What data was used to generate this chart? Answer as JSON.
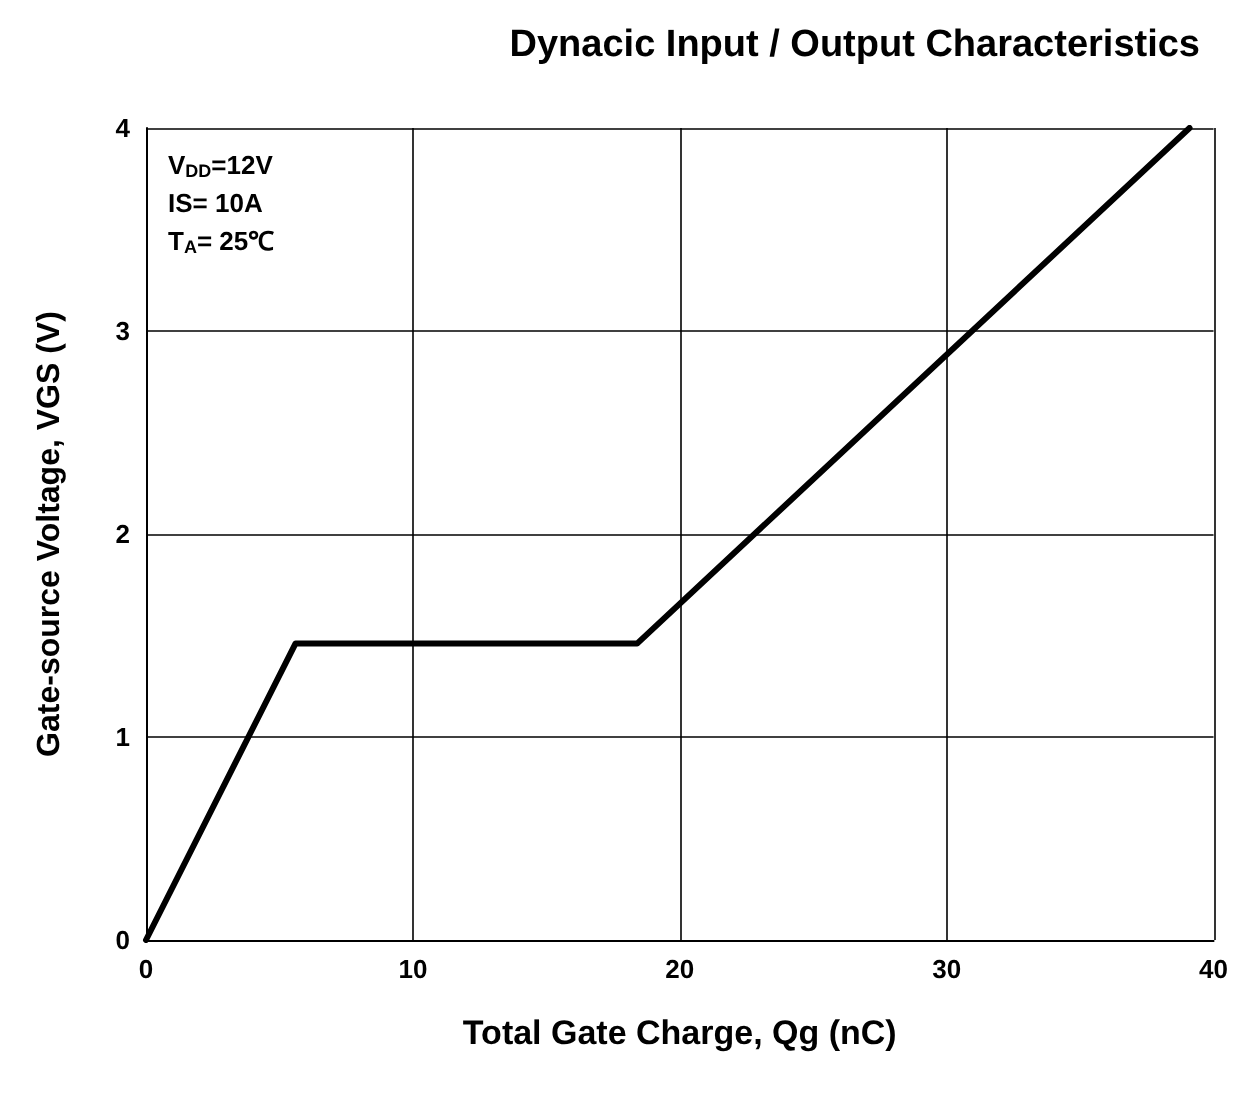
{
  "chart_data": {
    "type": "line",
    "title": "Dynacic Input / Output Characteristics",
    "xlabel": "Total Gate Charge, Qg (nC)",
    "ylabel": "Gate-source Voltage, VGS (V)",
    "x": [
      0,
      5.6,
      18.4,
      39.1
    ],
    "series": [
      {
        "color": "#000000",
        "values": [
          0,
          1.46,
          1.46,
          4
        ]
      }
    ],
    "xlim": [
      0,
      40
    ],
    "xticks": [
      0,
      10,
      20,
      30,
      40
    ],
    "ylim": [
      0,
      4
    ],
    "yticks": [
      0,
      1,
      2,
      3,
      4
    ],
    "grid": true,
    "marker": "none",
    "line_style": "solid",
    "annotations": [
      "V$_{DD}$=12V",
      "IS= 10A",
      "T$_{A}$= 25℃"
    ]
  }
}
